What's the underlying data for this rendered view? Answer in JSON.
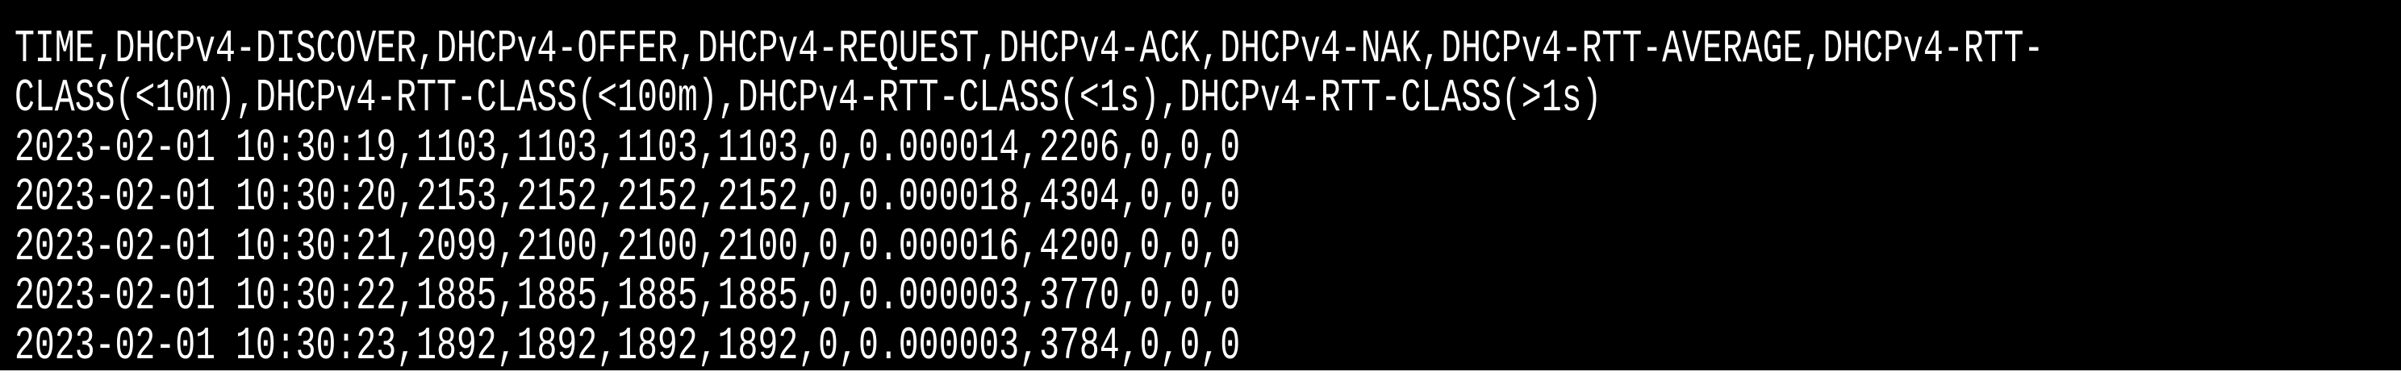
{
  "terminal": {
    "background": "#000000",
    "foreground": "#ffffff",
    "header": [
      "TIME,DHCPv4-DISCOVER,DHCPv4-OFFER,DHCPv4-REQUEST,DHCPv4-ACK,DHCPv4-NAK,DHCPv4-RTT-AVERAGE,DHCPv4-RTT-",
      "CLASS(<10m),DHCPv4-RTT-CLASS(<100m),DHCPv4-RTT-CLASS(<1s),DHCPv4-RTT-CLASS(>1s)"
    ],
    "rows": [
      "2023-02-01 10:30:19,1103,1103,1103,1103,0,0.000014,2206,0,0,0",
      "2023-02-01 10:30:20,2153,2152,2152,2152,0,0.000018,4304,0,0,0",
      "2023-02-01 10:30:21,2099,2100,2100,2100,0,0.000016,4200,0,0,0",
      "2023-02-01 10:30:22,1885,1885,1885,1885,0,0.000003,3770,0,0,0",
      "2023-02-01 10:30:23,1892,1892,1892,1892,0,0.000003,3784,0,0,0"
    ]
  }
}
